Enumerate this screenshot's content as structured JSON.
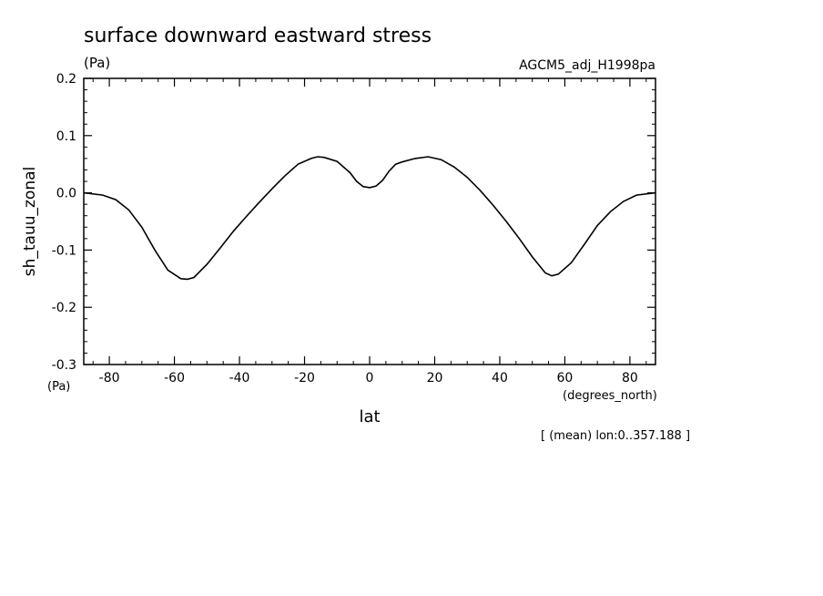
{
  "chart_data": {
    "type": "line",
    "title": "surface downward eastward stress",
    "units_left": "(Pa)",
    "dataset_label": "AGCM5_adj_H1998pa",
    "ylabel": "sh_tauu_zonal",
    "y_units": "(Pa)",
    "xlabel": "lat",
    "x_units": "(degrees_north)",
    "footnote": "[ (mean) lon:0..357.188 ]",
    "xlim": [
      -87.86,
      87.86
    ],
    "ylim": [
      -0.3,
      0.2
    ],
    "x_ticks": [
      -80,
      -60,
      -40,
      -20,
      0,
      20,
      40,
      60,
      80
    ],
    "x_tick_labels": [
      "-80",
      "-60",
      "-40",
      "-20",
      "0",
      "20",
      "40",
      "60",
      "80"
    ],
    "y_ticks": [
      -0.3,
      -0.2,
      -0.1,
      0.0,
      0.1,
      0.2
    ],
    "y_tick_labels": [
      "-0.3",
      "-0.2",
      "-0.1",
      "0.0",
      "0.1",
      "0.2"
    ],
    "series": [
      {
        "x": [
          -87.86,
          -82,
          -78,
          -74,
          -70,
          -66,
          -62,
          -58,
          -56,
          -54,
          -50,
          -46,
          -42,
          -38,
          -34,
          -30,
          -26,
          -22,
          -18,
          -16,
          -14,
          -10,
          -6,
          -4,
          -2,
          0,
          2,
          4,
          6,
          8,
          10,
          14,
          18,
          22,
          26,
          30,
          34,
          38,
          42,
          46,
          50,
          54,
          56,
          58,
          62,
          66,
          70,
          74,
          78,
          82,
          87.86
        ],
        "y": [
          0.0,
          -0.004,
          -0.012,
          -0.03,
          -0.06,
          -0.1,
          -0.135,
          -0.15,
          -0.151,
          -0.148,
          -0.125,
          -0.097,
          -0.068,
          -0.042,
          -0.017,
          0.007,
          0.03,
          0.05,
          0.06,
          0.063,
          0.062,
          0.055,
          0.035,
          0.02,
          0.011,
          0.009,
          0.012,
          0.022,
          0.038,
          0.05,
          0.054,
          0.06,
          0.063,
          0.058,
          0.045,
          0.027,
          0.004,
          -0.022,
          -0.05,
          -0.08,
          -0.112,
          -0.14,
          -0.145,
          -0.142,
          -0.122,
          -0.09,
          -0.057,
          -0.033,
          -0.015,
          -0.004,
          0.0
        ]
      }
    ]
  }
}
